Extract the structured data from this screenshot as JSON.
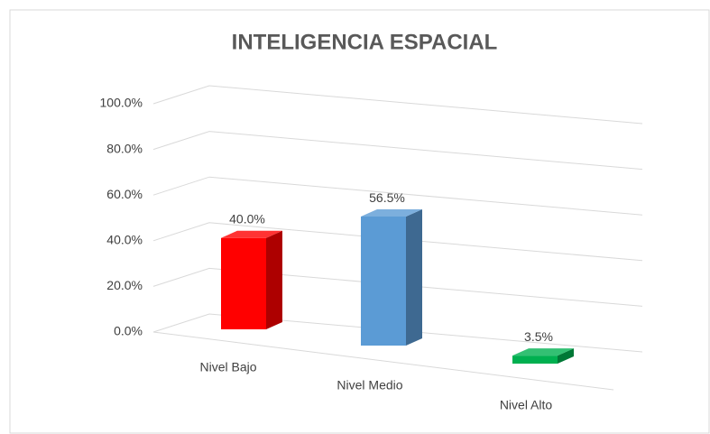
{
  "chart_data": {
    "type": "bar3d",
    "title": "INTELIGENCIA ESPACIAL",
    "categories": [
      "Nivel Bajo",
      "Nivel Medio",
      "Nivel Alto"
    ],
    "values": [
      40,
      56.5,
      3.5
    ],
    "value_labels": [
      "40.0%",
      "56.5%",
      "3.5%"
    ],
    "colors": [
      "#ff0000",
      "#5b9bd5",
      "#00b050"
    ],
    "ylim": [
      0,
      100
    ],
    "yticks": [
      {
        "value": 0,
        "label": "0.0%"
      },
      {
        "value": 20,
        "label": "20.0%"
      },
      {
        "value": 40,
        "label": "40.0%"
      },
      {
        "value": 60,
        "label": "60.0%"
      },
      {
        "value": 80,
        "label": "80.0%"
      },
      {
        "value": 100,
        "label": "100.0%"
      }
    ],
    "grid": true
  }
}
